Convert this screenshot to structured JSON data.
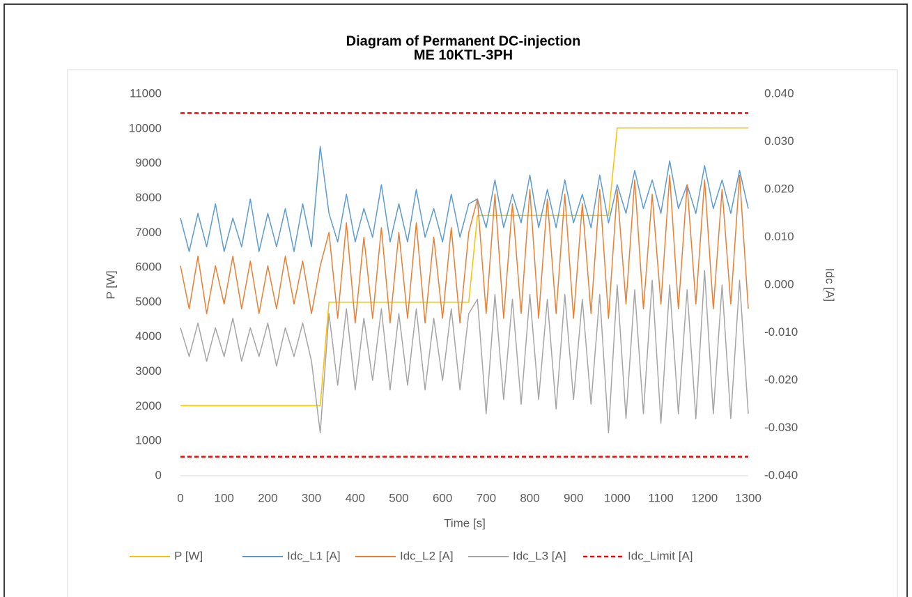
{
  "chart_data": {
    "type": "line",
    "title": "Diagram of Permanent DC-injection",
    "subtitle": "ME 10KTL-3PH",
    "x_label": "Time [s]",
    "y_label": "P [W]",
    "y2_label": "Idc [A]",
    "x": [
      0,
      20,
      40,
      60,
      80,
      100,
      120,
      140,
      160,
      180,
      200,
      220,
      240,
      260,
      280,
      300,
      320,
      340,
      360,
      380,
      400,
      420,
      440,
      460,
      480,
      500,
      520,
      540,
      560,
      580,
      600,
      620,
      640,
      660,
      680,
      700,
      720,
      740,
      760,
      780,
      800,
      820,
      840,
      860,
      880,
      900,
      920,
      940,
      960,
      980,
      1000,
      1020,
      1040,
      1060,
      1080,
      1100,
      1120,
      1140,
      1160,
      1180,
      1200,
      1220,
      1240,
      1260,
      1280,
      1300
    ],
    "xlim": [
      0,
      1300
    ],
    "xticks": [
      0,
      100,
      200,
      300,
      400,
      500,
      600,
      700,
      800,
      900,
      1000,
      1100,
      1200,
      1300
    ],
    "ylim": [
      0,
      11000
    ],
    "yticks": [
      0,
      1000,
      2000,
      3000,
      4000,
      5000,
      6000,
      7000,
      8000,
      9000,
      10000,
      11000
    ],
    "y2lim": [
      -0.04,
      0.04
    ],
    "y2ticks": [
      {
        "value": -0.04,
        "label": "-0.040"
      },
      {
        "value": -0.03,
        "label": "-0.030"
      },
      {
        "value": -0.02,
        "label": "-0.020"
      },
      {
        "value": -0.01,
        "label": "-0.010"
      },
      {
        "value": 0,
        "label": "0.000"
      },
      {
        "value": 0.01,
        "label": "0.010"
      },
      {
        "value": 0.02,
        "label": "0.020"
      },
      {
        "value": 0.03,
        "label": "0.030"
      },
      {
        "value": 0.04,
        "label": "0.040"
      }
    ],
    "grid": false,
    "legend": "bottom",
    "series": [
      {
        "name": "P [W]",
        "color": "#ffc000",
        "values": [
          2020,
          2020,
          2020,
          2020,
          2020,
          2020,
          2020,
          2020,
          2020,
          2020,
          2020,
          2020,
          2020,
          2020,
          2020,
          2020,
          2020,
          5000,
          5000,
          5000,
          5000,
          5000,
          5000,
          5000,
          5000,
          5000,
          5000,
          5000,
          5000,
          5000,
          5000,
          5000,
          5000,
          5000,
          7500,
          7500,
          7500,
          7500,
          7500,
          7500,
          7500,
          7500,
          7500,
          7500,
          7500,
          7500,
          7500,
          7500,
          7500,
          7500,
          10020,
          10020,
          10020,
          10020,
          10020,
          10020,
          10020,
          10020,
          10020,
          10020,
          10020,
          10020,
          10020,
          10020,
          10020,
          10020
        ]
      },
      {
        "name": "Idc_L1 [A]",
        "color": "#5b9bd5",
        "axis": "y2",
        "values": [
          0.014,
          0.007,
          0.015,
          0.008,
          0.017,
          0.007,
          0.014,
          0.008,
          0.018,
          0.007,
          0.015,
          0.008,
          0.016,
          0.007,
          0.017,
          0.008,
          0.029,
          0.015,
          0.009,
          0.019,
          0.009,
          0.016,
          0.01,
          0.021,
          0.009,
          0.017,
          0.009,
          0.02,
          0.01,
          0.016,
          0.009,
          0.019,
          0.01,
          0.017,
          0.018,
          0.012,
          0.022,
          0.012,
          0.019,
          0.013,
          0.023,
          0.012,
          0.02,
          0.012,
          0.022,
          0.013,
          0.019,
          0.012,
          0.023,
          0.013,
          0.021,
          0.015,
          0.024,
          0.016,
          0.022,
          0.015,
          0.026,
          0.016,
          0.021,
          0.015,
          0.025,
          0.016,
          0.022,
          0.015,
          0.024,
          0.016
        ]
      },
      {
        "name": "Idc_L2 [A]",
        "color": "#ed7d31",
        "axis": "y2",
        "values": [
          0.004,
          -0.005,
          0.006,
          -0.006,
          0.004,
          -0.004,
          0.006,
          -0.005,
          0.005,
          -0.006,
          0.004,
          -0.005,
          0.006,
          -0.004,
          0.005,
          -0.006,
          0.004,
          0.011,
          -0.007,
          0.013,
          -0.008,
          0.01,
          -0.007,
          0.012,
          -0.008,
          0.011,
          -0.007,
          0.013,
          -0.008,
          0.01,
          -0.007,
          0.012,
          -0.008,
          0.011,
          0.018,
          -0.006,
          0.019,
          -0.007,
          0.017,
          -0.006,
          0.02,
          -0.007,
          0.018,
          -0.006,
          0.019,
          -0.007,
          0.017,
          -0.006,
          0.02,
          -0.007,
          0.02,
          -0.004,
          0.022,
          -0.005,
          0.019,
          -0.004,
          0.023,
          -0.005,
          0.021,
          -0.004,
          0.022,
          -0.005,
          0.02,
          -0.004,
          0.023,
          -0.005
        ]
      },
      {
        "name": "Idc_L3 [A]",
        "color": "#a5a5a5",
        "axis": "y2",
        "values": [
          -0.009,
          -0.015,
          -0.008,
          -0.016,
          -0.009,
          -0.015,
          -0.007,
          -0.016,
          -0.009,
          -0.015,
          -0.008,
          -0.017,
          -0.009,
          -0.015,
          -0.008,
          -0.016,
          -0.031,
          -0.006,
          -0.021,
          -0.005,
          -0.022,
          -0.007,
          -0.02,
          -0.005,
          -0.022,
          -0.006,
          -0.021,
          -0.005,
          -0.022,
          -0.007,
          -0.02,
          -0.005,
          -0.022,
          -0.006,
          -0.003,
          -0.027,
          -0.002,
          -0.024,
          -0.003,
          -0.025,
          -0.002,
          -0.024,
          -0.003,
          -0.026,
          -0.002,
          -0.024,
          -0.003,
          -0.025,
          -0.002,
          -0.031,
          0.0,
          -0.028,
          -0.001,
          -0.027,
          0.001,
          -0.029,
          0.0,
          -0.027,
          -0.001,
          -0.028,
          0.003,
          -0.027,
          0.0,
          -0.028,
          0.001,
          -0.027
        ]
      },
      {
        "name": "Idc_Limit [A]",
        "color": "#ff0000",
        "axis": "y2",
        "dashed": true,
        "x": [
          0,
          1300,
          null,
          0,
          1300
        ],
        "values": [
          0.036,
          0.036,
          null,
          -0.036,
          -0.036
        ]
      }
    ]
  }
}
